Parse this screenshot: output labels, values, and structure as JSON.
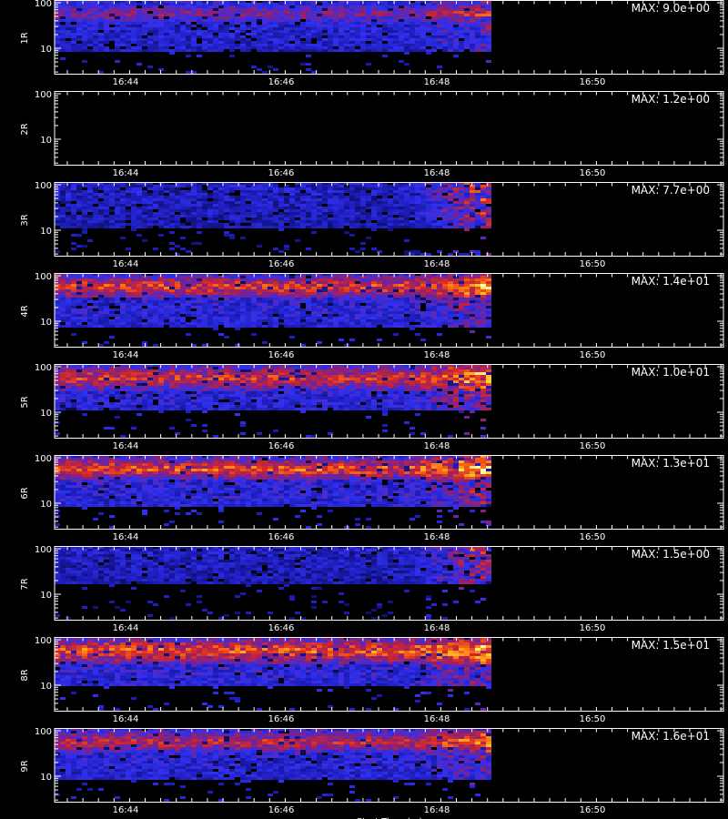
{
  "chart_data": {
    "type": "heatmap",
    "y_scale": "log",
    "x_ticks": [
      "16:44",
      "16:46",
      "16:48",
      "16:50"
    ],
    "y_ticks": [
      "100",
      "10"
    ],
    "x_range": [
      "16:43:06",
      "16:50:24"
    ],
    "data_end": "16:48:42",
    "colormap": [
      "#000000",
      "#1a1ab0",
      "#3030f0",
      "#8a1f7a",
      "#d0282c",
      "#ff6a10",
      "#ffd030",
      "#fff8b0"
    ],
    "xlabel_partial": "Start Time (...)",
    "panels": [
      {
        "label": "1R",
        "max_text": "MAX: 9.0e+00",
        "intensity": 0.55,
        "band": 0.15,
        "floor": 0.3,
        "hot_end": 0.3,
        "low_blob": false
      },
      {
        "label": "2R",
        "max_text": "MAX: 1.2e+00",
        "intensity": 0.0,
        "band": 0.0,
        "floor": 0.0,
        "hot_end": 0.0,
        "low_blob": false
      },
      {
        "label": "3R",
        "max_text": "MAX: 7.7e+00",
        "intensity": 0.25,
        "band": 0.0,
        "floor": 0.38,
        "hot_end": 0.65,
        "low_blob": true
      },
      {
        "label": "4R",
        "max_text": "MAX: 1.4e+01",
        "intensity": 0.8,
        "band": 0.16,
        "floor": 0.28,
        "hot_end": 0.4,
        "low_blob": false
      },
      {
        "label": "5R",
        "max_text": "MAX: 1.0e+01",
        "intensity": 0.75,
        "band": 0.18,
        "floor": 0.38,
        "hot_end": 0.5,
        "low_blob": false
      },
      {
        "label": "6R",
        "max_text": "MAX: 1.3e+01",
        "intensity": 0.85,
        "band": 0.14,
        "floor": 0.3,
        "hot_end": 0.5,
        "low_blob": false
      },
      {
        "label": "7R",
        "max_text": "MAX: 1.5e+00",
        "intensity": 0.22,
        "band": 0.0,
        "floor": 0.5,
        "hot_end": 0.6,
        "low_blob": false
      },
      {
        "label": "8R",
        "max_text": "MAX: 1.5e+01",
        "intensity": 0.85,
        "band": 0.18,
        "floor": 0.36,
        "hot_end": 0.45,
        "low_blob": false
      },
      {
        "label": "9R",
        "max_text": "MAX: 1.6e+01",
        "intensity": 0.7,
        "band": 0.16,
        "floor": 0.33,
        "hot_end": 0.35,
        "low_blob": false
      }
    ]
  }
}
